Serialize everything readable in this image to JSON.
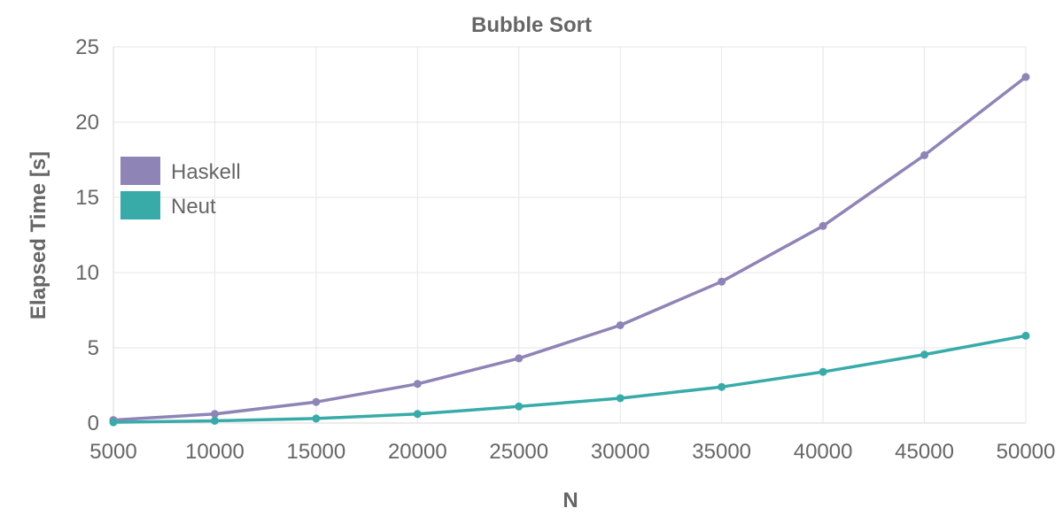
{
  "chart_data": {
    "type": "line",
    "title": "Bubble Sort",
    "xlabel": "N",
    "ylabel": "Elapsed Time [s]",
    "x": [
      5000,
      10000,
      15000,
      20000,
      25000,
      30000,
      35000,
      40000,
      45000,
      50000
    ],
    "xlim": [
      5000,
      50000
    ],
    "ylim": [
      0,
      25
    ],
    "yticks": [
      0,
      5,
      10,
      15,
      20,
      25
    ],
    "grid": true,
    "legend_position": "left",
    "series": [
      {
        "name": "Haskell",
        "color": "#8e84b6",
        "values": [
          0.2,
          0.6,
          1.4,
          2.6,
          4.3,
          6.5,
          9.4,
          13.1,
          17.8,
          23.0
        ]
      },
      {
        "name": "Neut",
        "color": "#38aba9",
        "values": [
          0.05,
          0.15,
          0.3,
          0.6,
          1.1,
          1.65,
          2.4,
          3.4,
          4.55,
          5.8
        ]
      }
    ]
  }
}
